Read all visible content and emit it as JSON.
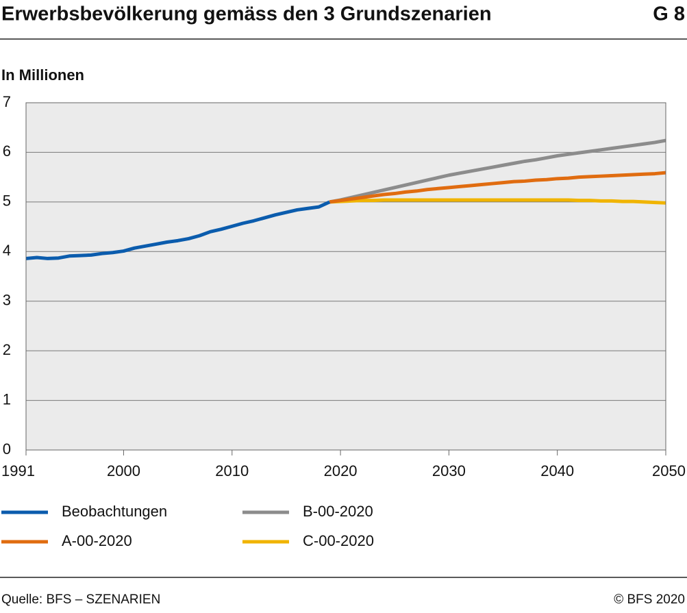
{
  "chart_data": {
    "type": "line",
    "title": "Erwerbsbevölkerung gemäss den 3 Grundszenarien",
    "chart_id": "G 8",
    "subtitle": "In Millionen",
    "source": "Quelle: BFS – SZENARIEN",
    "copyright": "© BFS 2020",
    "x": [
      1991,
      1992,
      1993,
      1994,
      1995,
      1996,
      1997,
      1998,
      1999,
      2000,
      2001,
      2002,
      2003,
      2004,
      2005,
      2006,
      2007,
      2008,
      2009,
      2010,
      2011,
      2012,
      2013,
      2014,
      2015,
      2016,
      2017,
      2018,
      2019,
      2020,
      2021,
      2022,
      2023,
      2024,
      2025,
      2026,
      2027,
      2028,
      2029,
      2030,
      2031,
      2032,
      2033,
      2034,
      2035,
      2036,
      2037,
      2038,
      2039,
      2040,
      2041,
      2042,
      2043,
      2044,
      2045,
      2046,
      2047,
      2048,
      2049,
      2050
    ],
    "series": [
      {
        "name": "Beobachtungen",
        "color": "#0b5cad",
        "values": [
          3.86,
          3.88,
          3.86,
          3.87,
          3.91,
          3.92,
          3.93,
          3.96,
          3.98,
          4.01,
          4.07,
          4.11,
          4.15,
          4.19,
          4.22,
          4.26,
          4.32,
          4.4,
          4.45,
          4.51,
          4.57,
          4.62,
          4.68,
          4.74,
          4.79,
          4.84,
          4.87,
          4.9,
          5.0,
          null,
          null,
          null,
          null,
          null,
          null,
          null,
          null,
          null,
          null,
          null,
          null,
          null,
          null,
          null,
          null,
          null,
          null,
          null,
          null,
          null,
          null,
          null,
          null,
          null,
          null,
          null,
          null,
          null,
          null,
          null
        ]
      },
      {
        "name": "A-00-2020",
        "color": "#e06c10",
        "values": [
          null,
          null,
          null,
          null,
          null,
          null,
          null,
          null,
          null,
          null,
          null,
          null,
          null,
          null,
          null,
          null,
          null,
          null,
          null,
          null,
          null,
          null,
          null,
          null,
          null,
          null,
          null,
          null,
          5.0,
          5.03,
          5.06,
          5.09,
          5.12,
          5.15,
          5.17,
          5.2,
          5.22,
          5.25,
          5.27,
          5.29,
          5.31,
          5.33,
          5.35,
          5.37,
          5.39,
          5.41,
          5.42,
          5.44,
          5.45,
          5.47,
          5.48,
          5.5,
          5.51,
          5.52,
          5.53,
          5.54,
          5.55,
          5.56,
          5.57,
          5.59
        ]
      },
      {
        "name": "B-00-2020",
        "color": "#8c8c8c",
        "values": [
          null,
          null,
          null,
          null,
          null,
          null,
          null,
          null,
          null,
          null,
          null,
          null,
          null,
          null,
          null,
          null,
          null,
          null,
          null,
          null,
          null,
          null,
          null,
          null,
          null,
          null,
          null,
          null,
          5.0,
          5.04,
          5.09,
          5.14,
          5.19,
          5.24,
          5.29,
          5.34,
          5.39,
          5.44,
          5.49,
          5.54,
          5.58,
          5.62,
          5.66,
          5.7,
          5.74,
          5.78,
          5.82,
          5.85,
          5.89,
          5.93,
          5.96,
          5.99,
          6.02,
          6.05,
          6.08,
          6.11,
          6.14,
          6.17,
          6.2,
          6.24
        ]
      },
      {
        "name": "C-00-2020",
        "color": "#f0b400",
        "values": [
          null,
          null,
          null,
          null,
          null,
          null,
          null,
          null,
          null,
          null,
          null,
          null,
          null,
          null,
          null,
          null,
          null,
          null,
          null,
          null,
          null,
          null,
          null,
          null,
          null,
          null,
          null,
          null,
          5.0,
          5.01,
          5.02,
          5.03,
          5.03,
          5.04,
          5.04,
          5.04,
          5.04,
          5.04,
          5.04,
          5.04,
          5.04,
          5.04,
          5.04,
          5.04,
          5.04,
          5.04,
          5.04,
          5.04,
          5.04,
          5.04,
          5.04,
          5.03,
          5.03,
          5.02,
          5.02,
          5.01,
          5.01,
          5.0,
          4.99,
          4.98
        ]
      }
    ],
    "xlim": [
      1991,
      2050
    ],
    "xticks": [
      1991,
      2000,
      2010,
      2020,
      2030,
      2040,
      2050
    ],
    "ylim": [
      0,
      7
    ],
    "yticks": [
      0,
      1,
      2,
      3,
      4,
      5,
      6,
      7
    ],
    "grid": true
  }
}
